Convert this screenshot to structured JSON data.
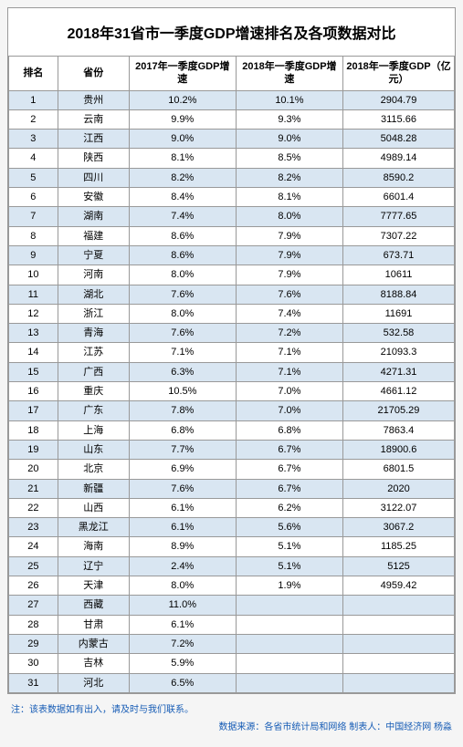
{
  "title": "2018年31省市一季度GDP增速排名及各项数据对比",
  "columns": [
    "排名",
    "省份",
    "2017年一季度GDP增速",
    "2018年一季度GDP增速",
    "2018年一季度GDP（亿元）"
  ],
  "rows": [
    [
      "1",
      "贵州",
      "10.2%",
      "10.1%",
      "2904.79"
    ],
    [
      "2",
      "云南",
      "9.9%",
      "9.3%",
      "3115.66"
    ],
    [
      "3",
      "江西",
      "9.0%",
      "9.0%",
      "5048.28"
    ],
    [
      "4",
      "陕西",
      "8.1%",
      "8.5%",
      "4989.14"
    ],
    [
      "5",
      "四川",
      "8.2%",
      "8.2%",
      "8590.2"
    ],
    [
      "6",
      "安徽",
      "8.4%",
      "8.1%",
      "6601.4"
    ],
    [
      "7",
      "湖南",
      "7.4%",
      "8.0%",
      "7777.65"
    ],
    [
      "8",
      "福建",
      "8.6%",
      "7.9%",
      "7307.22"
    ],
    [
      "9",
      "宁夏",
      "8.6%",
      "7.9%",
      "673.71"
    ],
    [
      "10",
      "河南",
      "8.0%",
      "7.9%",
      "10611"
    ],
    [
      "11",
      "湖北",
      "7.6%",
      "7.6%",
      "8188.84"
    ],
    [
      "12",
      "浙江",
      "8.0%",
      "7.4%",
      "11691"
    ],
    [
      "13",
      "青海",
      "7.6%",
      "7.2%",
      "532.58"
    ],
    [
      "14",
      "江苏",
      "7.1%",
      "7.1%",
      "21093.3"
    ],
    [
      "15",
      "广西",
      "6.3%",
      "7.1%",
      "4271.31"
    ],
    [
      "16",
      "重庆",
      "10.5%",
      "7.0%",
      "4661.12"
    ],
    [
      "17",
      "广东",
      "7.8%",
      "7.0%",
      "21705.29"
    ],
    [
      "18",
      "上海",
      "6.8%",
      "6.8%",
      "7863.4"
    ],
    [
      "19",
      "山东",
      "7.7%",
      "6.7%",
      "18900.6"
    ],
    [
      "20",
      "北京",
      "6.9%",
      "6.7%",
      "6801.5"
    ],
    [
      "21",
      "新疆",
      "7.6%",
      "6.7%",
      "2020"
    ],
    [
      "22",
      "山西",
      "6.1%",
      "6.2%",
      "3122.07"
    ],
    [
      "23",
      "黑龙江",
      "6.1%",
      "5.6%",
      "3067.2"
    ],
    [
      "24",
      "海南",
      "8.9%",
      "5.1%",
      "1185.25"
    ],
    [
      "25",
      "辽宁",
      "2.4%",
      "5.1%",
      "5125"
    ],
    [
      "26",
      "天津",
      "8.0%",
      "1.9%",
      "4959.42"
    ],
    [
      "27",
      "西藏",
      "11.0%",
      "",
      ""
    ],
    [
      "28",
      "甘肃",
      "6.1%",
      "",
      ""
    ],
    [
      "29",
      "内蒙古",
      "7.2%",
      "",
      ""
    ],
    [
      "30",
      "吉林",
      "5.9%",
      "",
      ""
    ],
    [
      "31",
      "河北",
      "6.5%",
      "",
      ""
    ]
  ],
  "note": "注：该表数据如有出入，请及时与我们联系。",
  "source": "数据来源：各省市统计局和网络 制表人：中国经济网 杨淼",
  "colors": {
    "odd_row": "#d9e6f2",
    "even_row": "#ffffff",
    "border": "#999999",
    "note_color": "#155bb5",
    "background": "#f5f5f5"
  },
  "font": {
    "title_size": 16,
    "title_weight": "bold",
    "cell_size": 11,
    "note_size": 10
  }
}
